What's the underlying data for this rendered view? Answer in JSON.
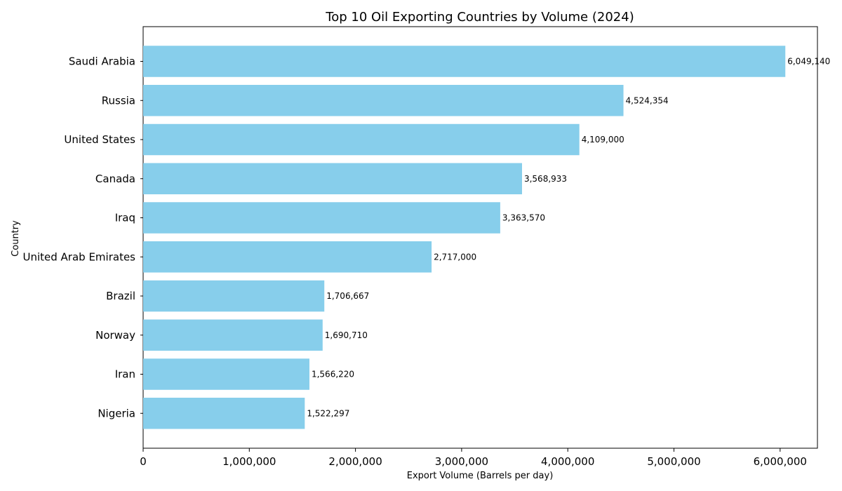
{
  "chart_data": {
    "type": "bar",
    "orientation": "horizontal",
    "title": "Top 10 Oil Exporting Countries by Volume (2024)",
    "xlabel": "Export Volume (Barrels per day)",
    "ylabel": "Country",
    "categories": [
      "Saudi Arabia",
      "Russia",
      "United States",
      "Canada",
      "Iraq",
      "United Arab Emirates",
      "Brazil",
      "Norway",
      "Iran",
      "Nigeria"
    ],
    "values": [
      6049140,
      4524354,
      4109000,
      3568933,
      3363570,
      2717000,
      1706667,
      1690710,
      1566220,
      1522297
    ],
    "value_labels": [
      "6,049,140",
      "4,524,354",
      "4,109,000",
      "3,568,933",
      "3,363,570",
      "2,717,000",
      "1,706,667",
      "1,690,710",
      "1,566,220",
      "1,522,297"
    ],
    "xticks": [
      0,
      1000000,
      2000000,
      3000000,
      4000000,
      5000000,
      6000000
    ],
    "xtick_labels": [
      "0",
      "1,000,000",
      "2,000,000",
      "3,000,000",
      "4,000,000",
      "5,000,000",
      "6,000,000"
    ],
    "xlim": [
      0,
      6351597
    ],
    "grid": false,
    "bar_color": "#87CEEB"
  }
}
